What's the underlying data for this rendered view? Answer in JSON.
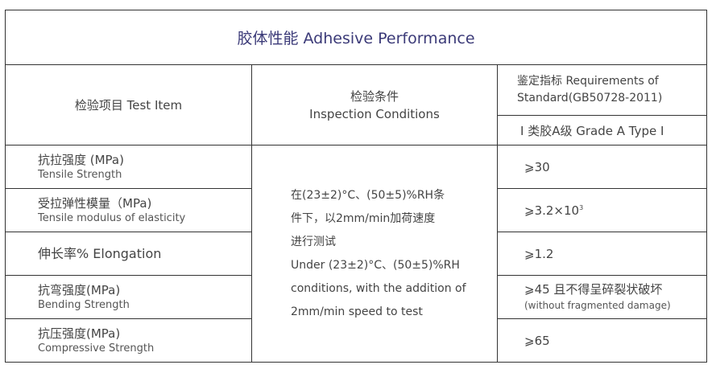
{
  "title": "胶体性能 Adhesive Performance",
  "header": {
    "test_item": "检验项目 Test Item",
    "conditions_zh": "检验条件",
    "conditions_en": "Inspection Conditions",
    "standard_1": "鉴定指标 Requirements of",
    "standard_2": "Standard(GB50728-2011)",
    "grade": "Ⅰ 类胶A级  Grade A Type I"
  },
  "conditions": [
    "在(23±2)°C、(50±5)%RH条",
    "件下，以2mm/min加荷速度",
    "进行测试",
    "Under (23±2)°C、(50±5)%RH",
    "conditions, with the addition of",
    "2mm/min speed to test"
  ],
  "rows": [
    {
      "zh": "抗拉强度 (MPa)",
      "en": "Tensile Strength",
      "value": "⩾30",
      "note": ""
    },
    {
      "zh": "受拉弹性模量（MPa)",
      "en": "Tensile modulus of elasticity",
      "value": "⩾3.2×10",
      "sup": "3",
      "note": ""
    },
    {
      "zh": "伸长率% Elongation",
      "en": "",
      "value": "⩾1.2",
      "note": ""
    },
    {
      "zh": "抗弯强度(MPa)",
      "en": "Bending Strength",
      "value": "⩾45 且不得呈碎裂状破坏",
      "note": "(without fragmented damage)"
    },
    {
      "zh": "抗压强度(MPa)",
      "en": "Compressive Strength",
      "value": "⩾65",
      "note": ""
    }
  ]
}
